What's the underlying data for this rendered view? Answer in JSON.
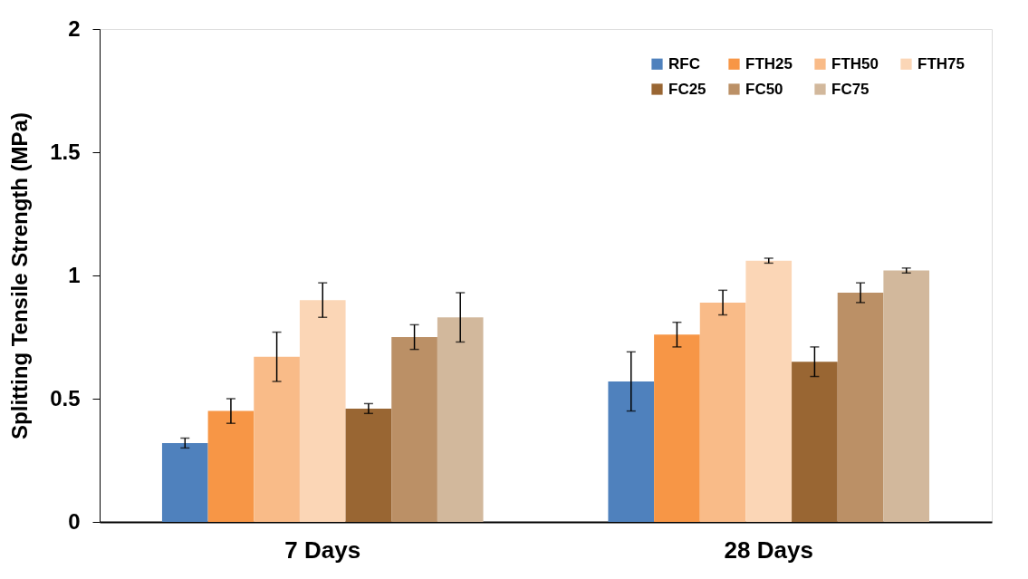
{
  "chart_data": {
    "type": "bar",
    "ylabel": "Splitting Tensile Strength (MPa)",
    "categories": [
      "7 Days",
      "28 Days"
    ],
    "series": [
      {
        "name": "RFC",
        "color": "#4f81bd",
        "values": [
          0.32,
          0.57
        ],
        "errors": [
          0.02,
          0.12
        ]
      },
      {
        "name": "FTH25",
        "color": "#f79646",
        "values": [
          0.45,
          0.76
        ],
        "errors": [
          0.05,
          0.05
        ]
      },
      {
        "name": "FTH50",
        "color": "#f9bb88",
        "values": [
          0.67,
          0.89
        ],
        "errors": [
          0.1,
          0.05
        ]
      },
      {
        "name": "FTH75",
        "color": "#fbd6b6",
        "values": [
          0.9,
          1.06
        ],
        "errors": [
          0.07,
          0.01
        ]
      },
      {
        "name": "FC25",
        "color": "#996633",
        "values": [
          0.46,
          0.65
        ],
        "errors": [
          0.02,
          0.06
        ]
      },
      {
        "name": "FC50",
        "color": "#bb9066",
        "values": [
          0.75,
          0.93
        ],
        "errors": [
          0.05,
          0.04
        ]
      },
      {
        "name": "FC75",
        "color": "#d2b89c",
        "values": [
          0.83,
          1.02
        ],
        "errors": [
          0.1,
          0.01
        ]
      }
    ],
    "ylim": [
      0,
      2
    ],
    "yticks": [
      0,
      0.5,
      1,
      1.5,
      2
    ],
    "grid": false,
    "legend": "top right"
  }
}
